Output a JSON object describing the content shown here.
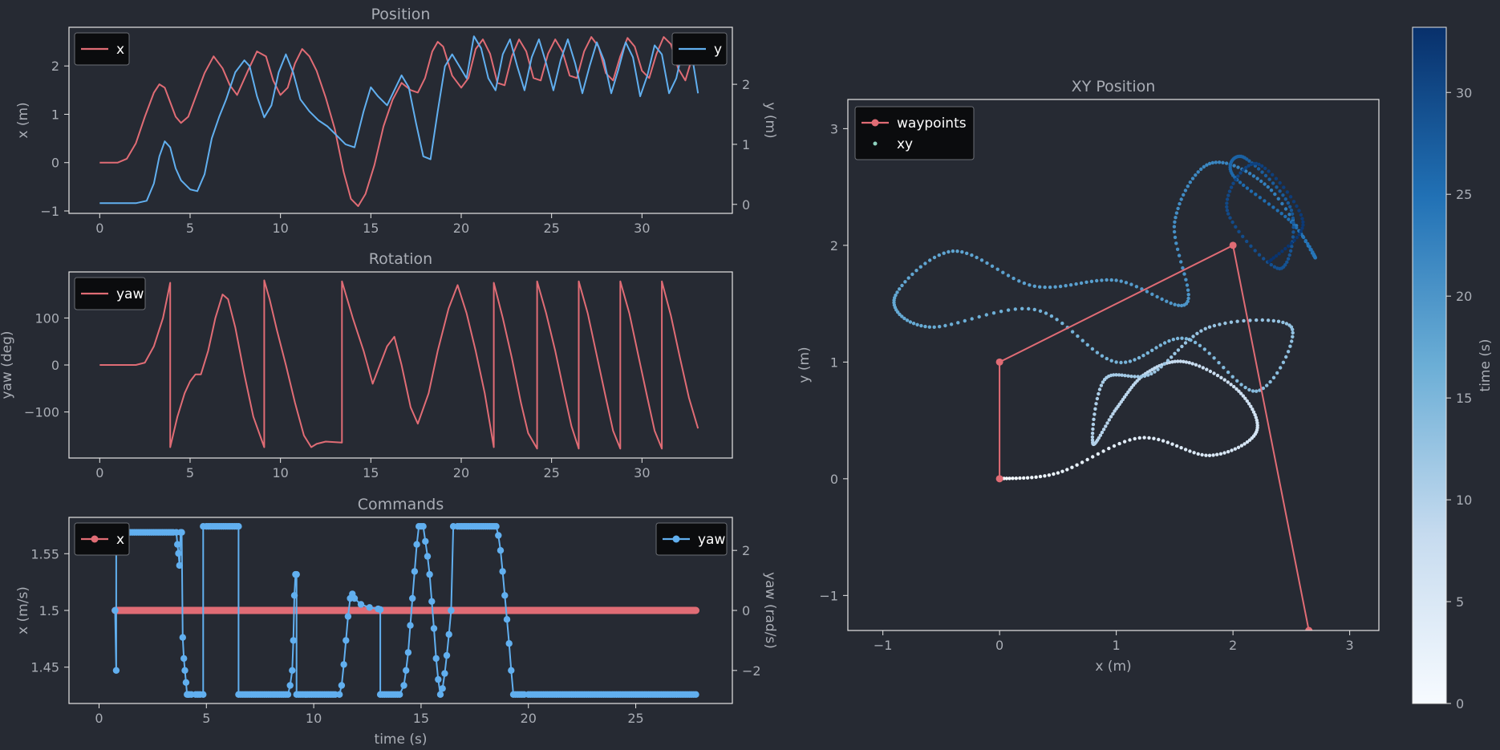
{
  "colors": {
    "background": "#262a33",
    "axes": "#e6e6e6",
    "text": "#a9adb5",
    "red": "#e06c75",
    "blue": "#61afef",
    "legend_bg": "#0b0c0e"
  },
  "chart_data": [
    {
      "id": "position",
      "type": "line",
      "title": "Position",
      "xlabel": "",
      "ylabel": "x (m)",
      "ylabel_right": "y (m)",
      "xlim": [
        -1.7,
        35
      ],
      "ylim": [
        -1.05,
        2.8
      ],
      "ylim_right": [
        -0.15,
        2.95
      ],
      "xticks": [
        0,
        5,
        10,
        15,
        20,
        25,
        30
      ],
      "yticks": [
        -1,
        0,
        1,
        2
      ],
      "yticks_right": [
        0,
        1,
        2
      ],
      "legend_left": "top-left",
      "legend_right": "top-right",
      "series": [
        {
          "name": "x",
          "axis": "left",
          "color": "#e06c75",
          "x": [
            0,
            1,
            1.5,
            2,
            2.5,
            3,
            3.3,
            3.6,
            3.9,
            4.2,
            4.5,
            4.9,
            5.3,
            5.8,
            6.3,
            6.8,
            7.2,
            7.6,
            8.2,
            8.7,
            9.2,
            9.6,
            10,
            10.4,
            10.8,
            11.2,
            11.6,
            12,
            12.5,
            13,
            13.5,
            13.9,
            14.3,
            14.7,
            15.2,
            15.7,
            16.2,
            16.7,
            17.2,
            17.6,
            18,
            18.4,
            18.7,
            19,
            19.5,
            20,
            20.4,
            20.8,
            21.2,
            21.6,
            22,
            22.4,
            22.8,
            23.2,
            23.6,
            24,
            24.4,
            24.8,
            25.2,
            25.6,
            26,
            26.4,
            26.8,
            27.2,
            27.6,
            28,
            28.4,
            28.8,
            29.2,
            29.6,
            30,
            30.4,
            30.8,
            31.2,
            31.6,
            32,
            32.4,
            32.8,
            33.1
          ],
          "y": [
            0,
            0,
            0.08,
            0.4,
            0.95,
            1.45,
            1.62,
            1.55,
            1.25,
            0.95,
            0.82,
            0.95,
            1.35,
            1.85,
            2.2,
            1.95,
            1.6,
            1.4,
            1.9,
            2.3,
            2.2,
            1.7,
            1.4,
            1.55,
            2.05,
            2.35,
            2.2,
            1.9,
            1.35,
            0.7,
            -0.2,
            -0.75,
            -0.9,
            -0.65,
            -0.05,
            0.75,
            1.3,
            1.65,
            1.5,
            1.45,
            1.75,
            2.3,
            2.5,
            2.4,
            1.8,
            1.55,
            1.75,
            2.35,
            2.55,
            2.25,
            1.65,
            1.6,
            2.2,
            2.55,
            2.3,
            1.75,
            1.7,
            2.25,
            2.55,
            2.3,
            1.8,
            1.75,
            2.3,
            2.6,
            2.4,
            1.85,
            1.7,
            2.2,
            2.58,
            2.4,
            1.9,
            1.75,
            2.25,
            2.6,
            2.45,
            1.95,
            1.7,
            2.2,
            2.55
          ]
        },
        {
          "name": "y",
          "axis": "right",
          "color": "#61afef",
          "x": [
            0,
            1,
            2,
            2.6,
            3,
            3.3,
            3.6,
            3.9,
            4.2,
            4.5,
            5,
            5.4,
            5.8,
            6.2,
            6.6,
            7,
            7.5,
            8,
            8.3,
            8.7,
            9.1,
            9.5,
            9.9,
            10.3,
            10.7,
            11.1,
            11.6,
            12.1,
            12.6,
            13.1,
            13.6,
            14.1,
            14.6,
            15,
            15.4,
            15.9,
            16.3,
            16.7,
            17.1,
            17.5,
            17.9,
            18.3,
            18.7,
            19.1,
            19.5,
            19.9,
            20.3,
            20.7,
            21.1,
            21.5,
            21.9,
            22.3,
            22.7,
            23.1,
            23.5,
            23.9,
            24.3,
            24.7,
            25.1,
            25.5,
            25.9,
            26.3,
            26.7,
            27.1,
            27.5,
            27.9,
            28.3,
            28.7,
            29.1,
            29.5,
            29.9,
            30.3,
            30.7,
            31.1,
            31.5,
            31.9,
            32.3,
            32.7,
            33.1
          ],
          "y": [
            0.02,
            0.02,
            0.02,
            0.06,
            0.35,
            0.8,
            1.05,
            0.95,
            0.6,
            0.4,
            0.25,
            0.22,
            0.5,
            1.1,
            1.45,
            1.75,
            2.2,
            2.4,
            2.3,
            1.8,
            1.45,
            1.65,
            2.2,
            2.5,
            2.2,
            1.75,
            1.55,
            1.4,
            1.3,
            1.15,
            1,
            0.95,
            1.55,
            1.95,
            1.8,
            1.65,
            1.9,
            2.15,
            1.95,
            1.35,
            0.8,
            0.75,
            1.55,
            2.3,
            2.5,
            2.3,
            2.1,
            2.8,
            2.6,
            2.1,
            1.9,
            2.5,
            2.75,
            2.3,
            1.9,
            2.45,
            2.75,
            2.35,
            1.9,
            2.4,
            2.75,
            2.35,
            1.85,
            2.3,
            2.7,
            2.4,
            1.85,
            2.25,
            2.7,
            2.45,
            1.8,
            2.15,
            2.65,
            2.5,
            1.85,
            2.1,
            2.65,
            2.6,
            1.85
          ]
        }
      ]
    },
    {
      "id": "rotation",
      "type": "line",
      "title": "Rotation",
      "xlabel": "",
      "ylabel": "yaw (deg)",
      "xlim": [
        -1.7,
        35
      ],
      "ylim": [
        -198,
        198
      ],
      "xticks": [
        0,
        5,
        10,
        15,
        20,
        25,
        30
      ],
      "yticks": [
        -100,
        0,
        100
      ],
      "legend": "top-left",
      "series": [
        {
          "name": "yaw",
          "color": "#e06c75",
          "x": [
            0,
            1,
            2,
            2.5,
            3,
            3.5,
            3.9,
            3.9,
            4.3,
            4.7,
            5,
            5.3,
            5.6,
            6,
            6.4,
            6.8,
            7.1,
            7.5,
            8,
            8.5,
            9.1,
            9.1,
            9.4,
            9.8,
            10.3,
            10.8,
            11.3,
            11.7,
            12,
            12.5,
            13.4,
            13.4,
            14,
            14.6,
            15.1,
            15.5,
            15.9,
            16.3,
            16.7,
            17.2,
            17.6,
            18.2,
            18.7,
            19.3,
            19.8,
            20.3,
            20.8,
            21.3,
            21.8,
            21.8,
            22.3,
            22.8,
            23.3,
            23.7,
            24.2,
            24.2,
            24.7,
            25.2,
            25.7,
            26.1,
            26.5,
            26.5,
            27,
            27.5,
            28,
            28.4,
            28.8,
            28.8,
            29.3,
            29.8,
            30.3,
            30.7,
            31.1,
            31.1,
            31.6,
            32.1,
            32.6,
            33.1
          ],
          "y": [
            0,
            0,
            0,
            5,
            40,
            100,
            175,
            -175,
            -110,
            -60,
            -35,
            -20,
            -20,
            30,
            100,
            150,
            140,
            80,
            -20,
            -110,
            -175,
            180,
            140,
            75,
            0,
            -80,
            -150,
            -175,
            -168,
            -163,
            -165,
            178,
            100,
            30,
            -40,
            0,
            40,
            60,
            0,
            -90,
            -125,
            -60,
            30,
            120,
            170,
            110,
            30,
            -60,
            -175,
            175,
            100,
            15,
            -80,
            -145,
            -178,
            178,
            110,
            30,
            -60,
            -130,
            -178,
            178,
            110,
            20,
            -70,
            -140,
            -178,
            178,
            110,
            20,
            -70,
            -140,
            -178,
            178,
            105,
            15,
            -70,
            -135
          ]
        }
      ]
    },
    {
      "id": "commands",
      "type": "line",
      "title": "Commands",
      "xlabel": "time (s)",
      "ylabel": "x (m/s)",
      "ylabel_right": "yaw (rad/s)",
      "xlim": [
        -1.4,
        29.5
      ],
      "ylim": [
        1.418,
        1.582
      ],
      "ylim_right": [
        -3.1,
        3.1
      ],
      "xticks": [
        0,
        5,
        10,
        15,
        20,
        25
      ],
      "yticks": [
        1.45,
        1.5,
        1.55
      ],
      "yticks_right": [
        -2,
        0,
        2
      ],
      "legend_left": "top-left",
      "legend_right": "top-right",
      "series": [
        {
          "name": "x",
          "axis": "left",
          "color": "#e06c75",
          "x": [
            0.75,
            27.8
          ],
          "y": [
            1.5,
            1.5
          ]
        },
        {
          "name": "yaw",
          "axis": "right",
          "color": "#61afef",
          "x": [
            0.75,
            0.8,
            0.8,
            0.85,
            3.6,
            3.65,
            3.7,
            3.75,
            3.8,
            3.85,
            3.9,
            3.95,
            4.0,
            4.05,
            4.1,
            4.15,
            4.2,
            4.5,
            4.85,
            4.85,
            5,
            5.5,
            6.0,
            6.5,
            6.5,
            7,
            8,
            8.8,
            8.9,
            9.0,
            9.05,
            9.1,
            9.15,
            9.2,
            9.2,
            9.5,
            10,
            10.5,
            11.2,
            11.3,
            11.4,
            11.5,
            11.6,
            11.7,
            11.8,
            11.9,
            12.2,
            12.6,
            13,
            13.1,
            13.1,
            13.5,
            14,
            14.2,
            14.3,
            14.4,
            14.5,
            14.6,
            14.7,
            14.8,
            14.9,
            15,
            15.1,
            15.2,
            15.3,
            15.4,
            15.5,
            15.6,
            15.7,
            15.8,
            15.9,
            16.0,
            16.1,
            16.2,
            16.3,
            16.4,
            16.5,
            16.7,
            17,
            17.5,
            18,
            18.5,
            18.6,
            18.7,
            18.8,
            18.9,
            19.0,
            19.1,
            19.2,
            19.3,
            20,
            22,
            24,
            26,
            27.8
          ],
          "y": [
            0,
            -2,
            2.6,
            2.6,
            2.6,
            2.2,
            1.9,
            1.5,
            2.6,
            2.6,
            -0.9,
            -1.6,
            -2.0,
            -2.4,
            -2.8,
            -2.8,
            -2.8,
            -2.8,
            -2.8,
            2.8,
            2.8,
            2.8,
            2.8,
            2.8,
            -2.8,
            -2.8,
            -2.8,
            -2.8,
            -2.5,
            -2.0,
            -1.0,
            0.5,
            1.2,
            1.2,
            -2.8,
            -2.8,
            -2.8,
            -2.8,
            -2.8,
            -2.5,
            -1.8,
            -1.0,
            -0.2,
            0.4,
            0.55,
            0.4,
            0.2,
            0.1,
            0.05,
            0.03,
            -2.8,
            -2.8,
            -2.8,
            -2.5,
            -2.0,
            -1.4,
            -0.5,
            0.4,
            1.3,
            2.2,
            2.8,
            2.8,
            2.8,
            2.3,
            1.8,
            1.2,
            0.3,
            -0.6,
            -1.6,
            -2.3,
            -2.8,
            -2.6,
            -2.1,
            -1.5,
            -0.8,
            0,
            2.8,
            2.8,
            2.8,
            2.8,
            2.8,
            2.8,
            2.5,
            2.0,
            1.3,
            0.5,
            -0.3,
            -1.1,
            -2.0,
            -2.8,
            -2.8,
            -2.8,
            -2.8,
            -2.8,
            -2.8
          ]
        }
      ]
    },
    {
      "id": "xy",
      "type": "scatter",
      "title": "XY Position",
      "xlabel": "x (m)",
      "ylabel": "y (m)",
      "xlim": [
        -1.3,
        3.25
      ],
      "ylim": [
        -1.3,
        3.25
      ],
      "xticks": [
        -1,
        0,
        1,
        2,
        3
      ],
      "yticks": [
        -1,
        0,
        1,
        2,
        3
      ],
      "legend": "top-left",
      "colorbar": {
        "label": "time (s)",
        "range": [
          0,
          33.2
        ],
        "ticks": [
          0,
          5,
          10,
          15,
          20,
          25,
          30
        ],
        "colormap": [
          "#f7fbff",
          "#c6dbef",
          "#6baed6",
          "#2171b5",
          "#08306b"
        ]
      },
      "waypoints": {
        "name": "waypoints",
        "color": "#e06c75",
        "x": [
          0,
          0,
          2,
          2.65
        ],
        "y": [
          0,
          1,
          2,
          -1.3
        ]
      },
      "trajectory": {
        "name": "xy",
        "t": [
          0,
          2,
          4,
          5,
          6,
          7,
          8,
          9,
          9.5,
          10,
          11,
          12,
          12.5,
          13,
          14,
          15,
          15.5,
          16,
          17,
          17.5,
          18,
          18.5,
          19,
          20,
          21,
          22,
          23,
          24,
          25,
          26,
          27,
          28,
          29,
          30,
          31,
          32,
          33
        ],
        "x": [
          0,
          0.5,
          1.2,
          1.8,
          2.2,
          2.05,
          1.6,
          1.25,
          1.0,
          0.8,
          0.9,
          1.3,
          1.8,
          2.5,
          2.2,
          1.6,
          1.0,
          0.3,
          -0.6,
          -0.9,
          -0.4,
          0.3,
          1.0,
          1.6,
          1.5,
          1.8,
          2.3,
          2.7,
          2.5,
          2.0,
          2.1,
          2.5,
          2.4,
          1.95,
          2.2,
          2.6,
          2.3
        ],
        "y": [
          0,
          0.05,
          0.35,
          0.2,
          0.4,
          0.75,
          1.0,
          0.9,
          0.6,
          0.3,
          0.85,
          0.9,
          1.3,
          1.3,
          0.75,
          1.2,
          1.0,
          1.45,
          1.3,
          1.55,
          1.95,
          1.65,
          1.7,
          1.5,
          2.2,
          2.7,
          2.5,
          1.9,
          2.2,
          2.6,
          2.75,
          2.3,
          1.8,
          2.3,
          2.7,
          2.2,
          1.85
        ]
      }
    }
  ]
}
